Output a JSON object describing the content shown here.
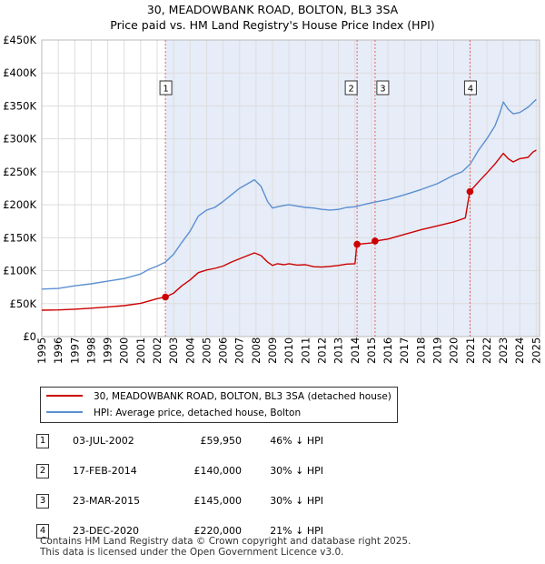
{
  "title": "30, MEADOWBANK ROAD, BOLTON, BL3 3SA",
  "subtitle": "Price paid vs. HM Land Registry's House Price Index (HPI)",
  "chart_data": {
    "type": "line",
    "title": "30, MEADOWBANK ROAD, BOLTON, BL3 3SA",
    "subtitle": "Price paid vs. HM Land Registry's House Price Index (HPI)",
    "xlim": [
      1995,
      2025.2
    ],
    "ylim": [
      0,
      450000
    ],
    "x_ticks": [
      1995,
      1996,
      1997,
      1998,
      1999,
      2000,
      2001,
      2002,
      2003,
      2004,
      2005,
      2006,
      2007,
      2008,
      2009,
      2010,
      2011,
      2012,
      2013,
      2014,
      2015,
      2016,
      2017,
      2018,
      2019,
      2020,
      2021,
      2022,
      2023,
      2024,
      2025
    ],
    "y_ticks": [
      0,
      50000,
      100000,
      150000,
      200000,
      250000,
      300000,
      350000,
      400000,
      450000
    ],
    "y_tick_labels": [
      "£0",
      "£50K",
      "£100K",
      "£150K",
      "£200K",
      "£250K",
      "£300K",
      "£350K",
      "£400K",
      "£450K"
    ],
    "series": [
      {
        "name": "30, MEADOWBANK ROAD, BOLTON, BL3 3SA (detached house)",
        "color": "#cc0000",
        "x": [
          1995.0,
          1996.0,
          1997.0,
          1998.0,
          1999.0,
          2000.0,
          2001.0,
          2001.5,
          2002.0,
          2002.5,
          2003.0,
          2003.5,
          2004.0,
          2004.5,
          2005.0,
          2005.5,
          2006.0,
          2006.5,
          2007.0,
          2007.5,
          2007.9,
          2008.3,
          2008.7,
          2009.0,
          2009.3,
          2009.7,
          2010.0,
          2010.5,
          2011.0,
          2011.5,
          2012.0,
          2012.5,
          2013.0,
          2013.5,
          2014.0,
          2014.12,
          2014.5,
          2015.0,
          2015.22,
          2016.0,
          2017.0,
          2018.0,
          2019.0,
          2020.0,
          2020.7,
          2020.97,
          2021.5,
          2022.0,
          2022.5,
          2023.0,
          2023.3,
          2023.6,
          2024.0,
          2024.5,
          2024.8,
          2025.0
        ],
        "y": [
          40000,
          40500,
          41500,
          43000,
          45000,
          47000,
          50500,
          54000,
          57500,
          59950,
          66000,
          77000,
          86000,
          97000,
          101000,
          103500,
          107000,
          113000,
          118000,
          123000,
          127000,
          123000,
          113000,
          108000,
          110500,
          109000,
          110500,
          108500,
          109000,
          106000,
          105500,
          106500,
          108000,
          110000,
          110500,
          140000,
          141000,
          142000,
          145000,
          148000,
          155000,
          162000,
          168000,
          174000,
          180000,
          220000,
          235000,
          248000,
          262000,
          278000,
          270000,
          265000,
          270000,
          272000,
          280000,
          283000
        ]
      },
      {
        "name": "HPI: Average price, detached house, Bolton",
        "color": "#5b8fd0",
        "x": [
          1995.0,
          1996.0,
          1997.0,
          1998.0,
          1999.0,
          2000.0,
          2001.0,
          2001.5,
          2002.0,
          2002.5,
          2003.0,
          2003.5,
          2004.0,
          2004.5,
          2005.0,
          2005.5,
          2006.0,
          2006.5,
          2007.0,
          2007.5,
          2007.9,
          2008.3,
          2008.7,
          2009.0,
          2009.3,
          2009.7,
          2010.0,
          2010.5,
          2011.0,
          2011.5,
          2012.0,
          2012.5,
          2013.0,
          2013.5,
          2014.0,
          2014.5,
          2015.0,
          2016.0,
          2017.0,
          2018.0,
          2019.0,
          2020.0,
          2020.5,
          2021.0,
          2021.5,
          2022.0,
          2022.5,
          2022.8,
          2023.0,
          2023.3,
          2023.6,
          2024.0,
          2024.5,
          2024.8,
          2025.0
        ],
        "y": [
          72000,
          73000,
          77000,
          80000,
          84000,
          88000,
          95000,
          102000,
          107000,
          113000,
          125000,
          143000,
          160000,
          183000,
          192000,
          196000,
          205000,
          215000,
          225000,
          232000,
          238000,
          228000,
          205000,
          195000,
          197000,
          199000,
          200000,
          198000,
          196000,
          195000,
          193000,
          192000,
          193000,
          196000,
          197000,
          200000,
          203000,
          208000,
          215000,
          223000,
          232000,
          245000,
          250000,
          262000,
          283000,
          300000,
          320000,
          340000,
          356000,
          345000,
          338000,
          340000,
          348000,
          355000,
          360000
        ]
      }
    ],
    "transactions": [
      {
        "label": "1",
        "x": 2002.5,
        "y": 59950
      },
      {
        "label": "2",
        "x": 2014.13,
        "y": 140000
      },
      {
        "label": "3",
        "x": 2015.22,
        "y": 145000
      },
      {
        "label": "4",
        "x": 2020.98,
        "y": 220000
      }
    ]
  },
  "legend": {
    "items": [
      {
        "label": "30, MEADOWBANK ROAD, BOLTON, BL3 3SA (detached house)",
        "color": "#cc0000"
      },
      {
        "label": "HPI: Average price, detached house, Bolton",
        "color": "#5b8fd0"
      }
    ]
  },
  "table": {
    "rows": [
      {
        "num": "1",
        "date": "03-JUL-2002",
        "price": "£59,950",
        "delta": "46% ↓ HPI"
      },
      {
        "num": "2",
        "date": "17-FEB-2014",
        "price": "£140,000",
        "delta": "30% ↓ HPI"
      },
      {
        "num": "3",
        "date": "23-MAR-2015",
        "price": "£145,000",
        "delta": "30% ↓ HPI"
      },
      {
        "num": "4",
        "date": "23-DEC-2020",
        "price": "£220,000",
        "delta": "21% ↓ HPI"
      }
    ]
  },
  "footer": {
    "line1": "Contains HM Land Registry data © Crown copyright and database right 2025.",
    "line2": "This data is licensed under the Open Government Licence v3.0."
  }
}
